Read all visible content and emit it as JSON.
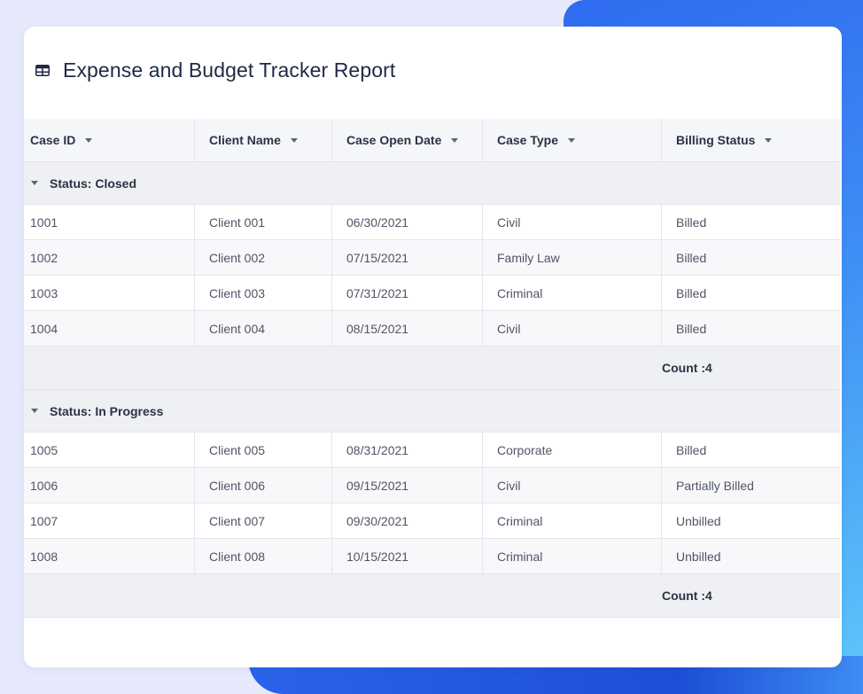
{
  "report": {
    "title": "Expense and Budget Tracker Report",
    "icon": "table-icon"
  },
  "columns": [
    "Case ID",
    "Client Name",
    "Case Open Date",
    "Case Type",
    "Billing Status"
  ],
  "groups": [
    {
      "label": "Status: Closed",
      "rows": [
        [
          "1001",
          "Client 001",
          "06/30/2021",
          "Civil",
          "Billed"
        ],
        [
          "1002",
          "Client 002",
          "07/15/2021",
          "Family Law",
          "Billed"
        ],
        [
          "1003",
          "Client 003",
          "07/31/2021",
          "Criminal",
          "Billed"
        ],
        [
          "1004",
          "Client 004",
          "08/15/2021",
          "Civil",
          "Billed"
        ]
      ],
      "summary": "Count :4"
    },
    {
      "label": "Status: In Progress",
      "rows": [
        [
          "1005",
          "Client 005",
          "08/31/2021",
          "Corporate",
          "Billed"
        ],
        [
          "1006",
          "Client 006",
          "09/15/2021",
          "Civil",
          "Partially Billed"
        ],
        [
          "1007",
          "Client 007",
          "09/30/2021",
          "Criminal",
          "Unbilled"
        ],
        [
          "1008",
          "Client 008",
          "10/15/2021",
          "Criminal",
          "Unbilled"
        ]
      ],
      "summary": "Count :4"
    }
  ],
  "colors": {
    "accent": "#2f6bf0",
    "background": "#e6e9fb",
    "header_bg": "#f5f6f9",
    "group_bg": "#eff0f4"
  }
}
